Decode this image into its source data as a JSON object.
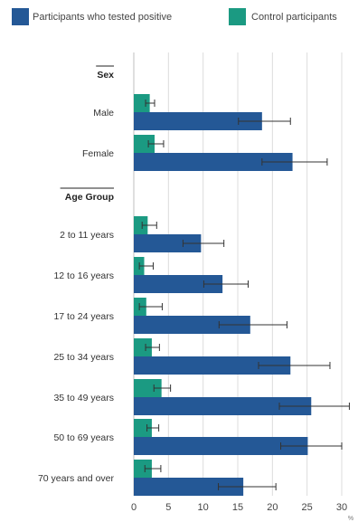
{
  "chart_data": {
    "type": "bar",
    "orientation": "horizontal",
    "legend": {
      "placement": "top",
      "items": [
        {
          "name": "Participants who tested positive",
          "color": "#245896"
        },
        {
          "name": "Control participants",
          "color": "#1b9a82"
        }
      ]
    },
    "groups": [
      {
        "label": "Sex",
        "categories": [
          "Male",
          "Female"
        ]
      },
      {
        "label": "Age Group",
        "categories": [
          "2 to 11 years",
          "12 to 16 years",
          "17 to 24 years",
          "25 to 34 years",
          "35 to 49 years",
          "50 to 69 years",
          "70 years and over"
        ]
      }
    ],
    "categories": [
      "Male",
      "Female",
      "2 to 11 years",
      "12 to 16 years",
      "17 to 24 years",
      "25 to 34 years",
      "35 to 49 years",
      "50 to 69 years",
      "70 years and over"
    ],
    "series": [
      {
        "name": "Control participants",
        "color": "#1b9a82",
        "values": [
          2.3,
          3.0,
          2.0,
          1.5,
          1.8,
          2.6,
          4.0,
          2.6,
          2.6
        ],
        "ci_low": [
          1.7,
          2.1,
          1.2,
          0.8,
          0.8,
          1.7,
          2.9,
          1.9,
          1.6
        ],
        "ci_high": [
          3.0,
          4.3,
          3.3,
          2.8,
          4.1,
          3.7,
          5.3,
          3.6,
          3.9
        ]
      },
      {
        "name": "Participants who tested positive",
        "color": "#245896",
        "values": [
          18.5,
          22.9,
          9.7,
          12.8,
          16.8,
          22.6,
          25.6,
          25.1,
          15.8
        ],
        "ci_low": [
          15.1,
          18.5,
          7.1,
          10.1,
          12.3,
          18.0,
          21.0,
          21.2,
          12.2
        ],
        "ci_high": [
          22.6,
          27.9,
          13.0,
          16.5,
          22.1,
          28.3,
          31.1,
          30.0,
          20.5
        ]
      }
    ],
    "xlim": [
      0,
      32
    ],
    "xticks": [
      0,
      5,
      10,
      15,
      20,
      25,
      30
    ],
    "xlabel": "%",
    "grid": true
  }
}
